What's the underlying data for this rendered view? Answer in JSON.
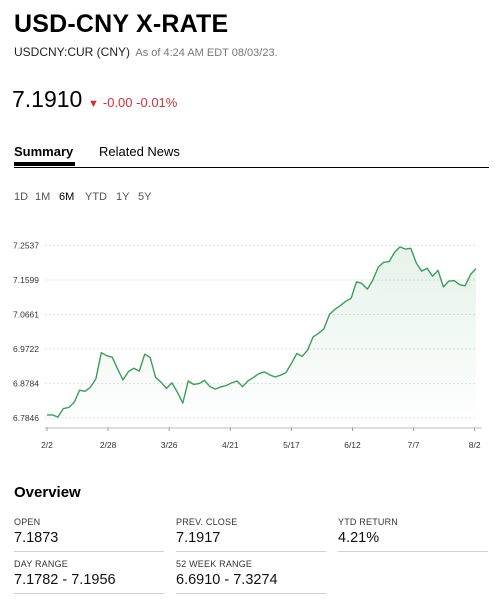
{
  "header": {
    "title": "USD-CNY X-RATE",
    "ticker": "USDCNY:CUR (CNY)",
    "as_of": "As of 4:24 AM EDT 08/03/23."
  },
  "quote": {
    "price": "7.1910",
    "change": "-0.00",
    "change_pct": "-0.01%",
    "direction_icon": "triangle-down-icon",
    "change_color": "#d1303a"
  },
  "tabs": [
    {
      "label": "Summary",
      "active": true
    },
    {
      "label": "Related News",
      "active": false
    }
  ],
  "ranges": [
    {
      "label": "1D",
      "active": false
    },
    {
      "label": "1M",
      "active": false
    },
    {
      "label": "6M",
      "active": true
    },
    {
      "label": "YTD",
      "active": false
    },
    {
      "label": "1Y",
      "active": false
    },
    {
      "label": "5Y",
      "active": false
    }
  ],
  "chart_data": {
    "type": "area",
    "line_color": "#3e9c5c",
    "y_ticks": [
      "7.2537",
      "7.1599",
      "7.0661",
      "6.9722",
      "6.8784",
      "6.7846"
    ],
    "y_tick_values": [
      7.2537,
      7.1599,
      7.0661,
      6.9722,
      6.8784,
      6.7846
    ],
    "x_ticks": [
      "2/2",
      "2/28",
      "3/26",
      "4/21",
      "5/17",
      "6/12",
      "7/7",
      "8/2"
    ],
    "ylim": [
      6.76,
      7.285
    ],
    "values": [
      6.7925,
      6.793,
      6.787,
      6.81,
      6.813,
      6.827,
      6.86,
      6.857,
      6.868,
      6.891,
      6.962,
      6.954,
      6.95,
      6.918,
      6.888,
      6.911,
      6.92,
      6.912,
      6.958,
      6.949,
      6.895,
      6.882,
      6.865,
      6.88,
      6.855,
      6.825,
      6.885,
      6.876,
      6.878,
      6.887,
      6.87,
      6.863,
      6.869,
      6.873,
      6.88,
      6.885,
      6.87,
      6.885,
      6.895,
      6.905,
      6.91,
      6.902,
      6.896,
      6.901,
      6.908,
      6.933,
      6.96,
      6.952,
      6.97,
      7.005,
      7.015,
      7.027,
      7.066,
      7.08,
      7.09,
      7.102,
      7.11,
      7.155,
      7.15,
      7.135,
      7.16,
      7.195,
      7.208,
      7.21,
      7.235,
      7.25,
      7.244,
      7.246,
      7.206,
      7.184,
      7.192,
      7.17,
      7.186,
      7.141,
      7.157,
      7.158,
      7.147,
      7.144,
      7.175,
      7.191
    ],
    "grid": "horizontal dotted",
    "legend": "none"
  },
  "overview": {
    "title": "Overview",
    "stats": [
      {
        "label": "OPEN",
        "value": "7.1873"
      },
      {
        "label": "PREV. CLOSE",
        "value": "7.1917"
      },
      {
        "label": "YTD RETURN",
        "value": "4.21%"
      },
      {
        "label": "DAY RANGE",
        "value": "7.1782 - 7.1956"
      },
      {
        "label": "52 WEEK RANGE",
        "value": "6.6910 - 7.3274"
      }
    ]
  }
}
